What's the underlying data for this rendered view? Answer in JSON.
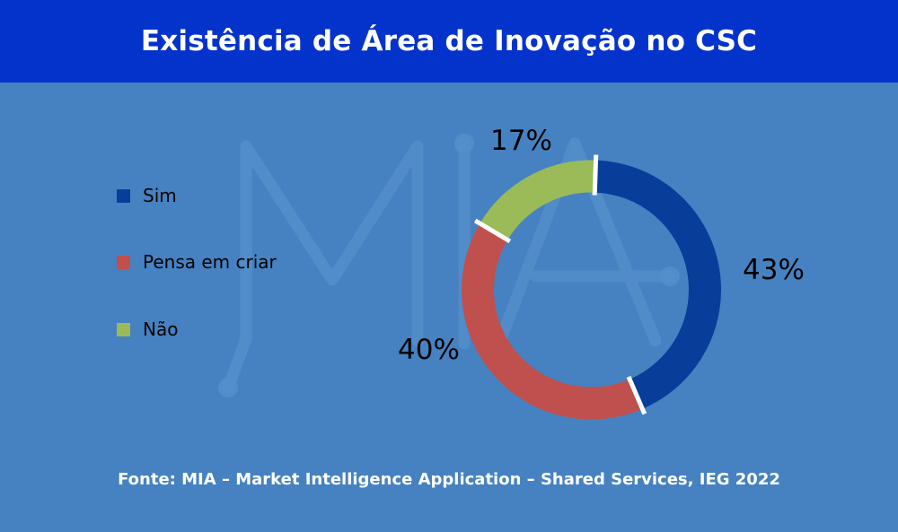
{
  "header": {
    "title": "Existência de Área de Inovação no CSC"
  },
  "colors": {
    "header_bg": "#0433cc",
    "background": "#4682c1",
    "sim": "#083d9a",
    "pensa_em_criar": "#c0504d",
    "nao": "#9bbb59",
    "separator": "#ffffff"
  },
  "legend": {
    "items": [
      {
        "label": "Sim",
        "color": "#083d9a"
      },
      {
        "label": "Pensa em criar",
        "color": "#c0504d"
      },
      {
        "label": "Não",
        "color": "#9bbb59"
      }
    ]
  },
  "labels": {
    "sim": "43%",
    "pensa_em_criar": "40%",
    "nao": "17%"
  },
  "watermark": {
    "text": "MIA"
  },
  "footer": {
    "source": "Fonte: MIA – Market Intelligence Application – Shared Services, IEG 2022"
  },
  "chart_data": {
    "type": "pie",
    "variant": "donut",
    "title": "Existência de Área de Inovação no CSC",
    "categories": [
      "Sim",
      "Pensa em criar",
      "Não"
    ],
    "values": [
      43,
      40,
      17
    ],
    "unit": "%",
    "colors": [
      "#083d9a",
      "#c0504d",
      "#9bbb59"
    ],
    "legend_position": "left",
    "source": "Fonte: MIA – Market Intelligence Application – Shared Services, IEG 2022"
  }
}
